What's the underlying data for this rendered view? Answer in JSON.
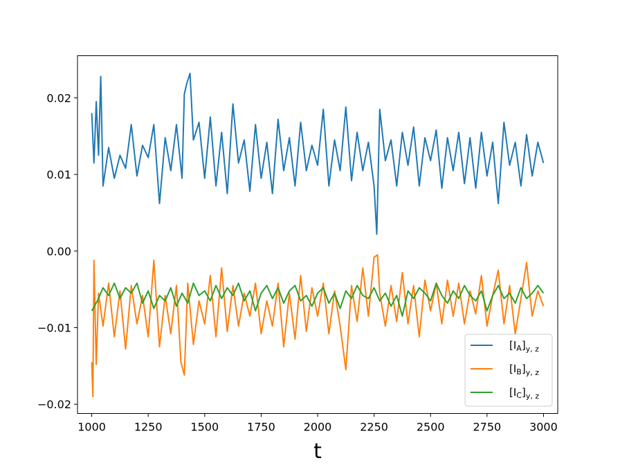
{
  "chart_data": {
    "type": "line",
    "title": "",
    "xlabel": "t",
    "ylabel": "",
    "xlim": [
      937,
      3063
    ],
    "ylim": [
      -0.0212,
      0.0255
    ],
    "xticks": [
      1000,
      1250,
      1500,
      1750,
      2000,
      2250,
      2500,
      2750,
      3000
    ],
    "xtick_labels": [
      "1000",
      "1250",
      "1500",
      "1750",
      "2000",
      "2250",
      "2500",
      "2750",
      "3000"
    ],
    "yticks": [
      -0.02,
      -0.01,
      0.0,
      0.01,
      0.02
    ],
    "ytick_labels": [
      "−0.02",
      "−0.01",
      "0.00",
      "0.01",
      "0.02"
    ],
    "grid": false,
    "legend_position": "bottom-right",
    "series": [
      {
        "name": "A",
        "legend_main": "[I",
        "legend_sub": "A",
        "legend_tail": "]",
        "legend_sub2": "y, z",
        "color": "#1f77b4",
        "x": [
          1000,
          1010,
          1020,
          1030,
          1040,
          1050,
          1075,
          1100,
          1125,
          1150,
          1175,
          1200,
          1225,
          1250,
          1275,
          1300,
          1325,
          1350,
          1375,
          1400,
          1410,
          1420,
          1435,
          1450,
          1475,
          1500,
          1525,
          1550,
          1575,
          1600,
          1625,
          1650,
          1675,
          1700,
          1725,
          1750,
          1775,
          1800,
          1825,
          1850,
          1875,
          1900,
          1925,
          1950,
          1975,
          2000,
          2025,
          2050,
          2075,
          2100,
          2125,
          2150,
          2175,
          2200,
          2225,
          2250,
          2262,
          2275,
          2300,
          2325,
          2350,
          2375,
          2400,
          2425,
          2450,
          2475,
          2500,
          2525,
          2550,
          2575,
          2600,
          2625,
          2650,
          2675,
          2700,
          2725,
          2750,
          2775,
          2800,
          2825,
          2850,
          2875,
          2900,
          2925,
          2950,
          2975,
          3000
        ],
        "y": [
          0.018,
          0.0115,
          0.0195,
          0.0125,
          0.0228,
          0.0085,
          0.0135,
          0.0095,
          0.0125,
          0.0108,
          0.0165,
          0.0098,
          0.0138,
          0.0122,
          0.0165,
          0.0062,
          0.0148,
          0.0105,
          0.0165,
          0.0095,
          0.0205,
          0.0218,
          0.0232,
          0.0145,
          0.0168,
          0.0095,
          0.0175,
          0.0085,
          0.0155,
          0.0075,
          0.0192,
          0.0115,
          0.0145,
          0.0078,
          0.0165,
          0.0095,
          0.0142,
          0.0075,
          0.0172,
          0.0105,
          0.0148,
          0.0085,
          0.0168,
          0.0105,
          0.0138,
          0.0112,
          0.0185,
          0.0085,
          0.0145,
          0.0105,
          0.0188,
          0.0092,
          0.0155,
          0.0105,
          0.0142,
          0.0085,
          0.0022,
          0.0185,
          0.0118,
          0.0145,
          0.0085,
          0.0155,
          0.0112,
          0.0162,
          0.0085,
          0.0148,
          0.0118,
          0.0158,
          0.0082,
          0.0148,
          0.0105,
          0.0155,
          0.0088,
          0.0148,
          0.0082,
          0.0155,
          0.0098,
          0.0142,
          0.0062,
          0.0168,
          0.0112,
          0.0142,
          0.0085,
          0.0152,
          0.0098,
          0.0142,
          0.0115
        ]
      },
      {
        "name": "B",
        "legend_main": "[I",
        "legend_sub": "B",
        "legend_tail": "]",
        "legend_sub2": "y, z",
        "color": "#ff7f0e",
        "x": [
          1000,
          1005,
          1010,
          1015,
          1020,
          1030,
          1050,
          1075,
          1100,
          1125,
          1150,
          1175,
          1200,
          1225,
          1250,
          1275,
          1300,
          1325,
          1350,
          1375,
          1395,
          1410,
          1425,
          1450,
          1475,
          1500,
          1525,
          1550,
          1575,
          1600,
          1625,
          1650,
          1675,
          1700,
          1725,
          1750,
          1775,
          1800,
          1825,
          1850,
          1875,
          1900,
          1925,
          1950,
          1975,
          2000,
          2025,
          2050,
          2075,
          2100,
          2125,
          2150,
          2175,
          2200,
          2225,
          2250,
          2265,
          2275,
          2300,
          2325,
          2350,
          2375,
          2400,
          2425,
          2450,
          2475,
          2500,
          2525,
          2550,
          2575,
          2600,
          2625,
          2650,
          2675,
          2700,
          2725,
          2750,
          2775,
          2800,
          2825,
          2850,
          2875,
          2900,
          2925,
          2950,
          2975,
          3000
        ],
        "y": [
          -0.0145,
          -0.019,
          -0.0012,
          -0.0085,
          -0.0148,
          -0.0055,
          -0.0098,
          -0.0042,
          -0.0112,
          -0.0052,
          -0.0128,
          -0.0045,
          -0.0095,
          -0.0058,
          -0.0112,
          -0.0012,
          -0.0125,
          -0.0058,
          -0.0108,
          -0.0045,
          -0.0145,
          -0.0162,
          -0.0042,
          -0.0122,
          -0.0065,
          -0.0095,
          -0.0032,
          -0.0112,
          -0.0022,
          -0.0105,
          -0.0045,
          -0.0098,
          -0.0055,
          -0.0085,
          -0.0042,
          -0.0108,
          -0.0065,
          -0.0098,
          -0.0042,
          -0.0125,
          -0.0055,
          -0.0115,
          -0.0032,
          -0.0105,
          -0.0048,
          -0.0085,
          -0.0042,
          -0.0108,
          -0.0052,
          -0.0098,
          -0.0155,
          -0.0045,
          -0.0092,
          -0.0022,
          -0.0085,
          -0.0008,
          -0.0005,
          -0.0055,
          -0.0098,
          -0.0045,
          -0.0092,
          -0.0028,
          -0.0095,
          -0.0045,
          -0.0112,
          -0.0038,
          -0.0078,
          -0.0042,
          -0.0095,
          -0.0038,
          -0.0085,
          -0.0042,
          -0.0095,
          -0.0052,
          -0.0082,
          -0.0032,
          -0.0098,
          -0.0058,
          -0.0025,
          -0.0095,
          -0.0045,
          -0.0108,
          -0.0062,
          -0.0015,
          -0.0085,
          -0.0052,
          -0.0072
        ]
      },
      {
        "name": "C",
        "legend_main": "[I",
        "legend_sub": "C",
        "legend_tail": "]",
        "legend_sub2": "y, z",
        "color": "#2ca02c",
        "x": [
          1000,
          1025,
          1050,
          1075,
          1100,
          1125,
          1150,
          1175,
          1200,
          1225,
          1250,
          1275,
          1300,
          1325,
          1350,
          1375,
          1400,
          1425,
          1450,
          1475,
          1500,
          1525,
          1550,
          1575,
          1600,
          1625,
          1650,
          1675,
          1700,
          1725,
          1750,
          1775,
          1800,
          1825,
          1850,
          1875,
          1900,
          1925,
          1950,
          1975,
          2000,
          2025,
          2050,
          2075,
          2100,
          2125,
          2150,
          2175,
          2200,
          2225,
          2250,
          2275,
          2300,
          2325,
          2350,
          2375,
          2400,
          2425,
          2450,
          2475,
          2500,
          2525,
          2550,
          2575,
          2600,
          2625,
          2650,
          2675,
          2700,
          2725,
          2750,
          2775,
          2800,
          2825,
          2850,
          2875,
          2900,
          2925,
          2950,
          2975,
          3000
        ],
        "y": [
          -0.0078,
          -0.0065,
          -0.0048,
          -0.0058,
          -0.0042,
          -0.0062,
          -0.0048,
          -0.0055,
          -0.0042,
          -0.0068,
          -0.0052,
          -0.0075,
          -0.0058,
          -0.0065,
          -0.0048,
          -0.0072,
          -0.0055,
          -0.0068,
          -0.0042,
          -0.0058,
          -0.0052,
          -0.0065,
          -0.0045,
          -0.0062,
          -0.0048,
          -0.0058,
          -0.0042,
          -0.0065,
          -0.0052,
          -0.0078,
          -0.0055,
          -0.0045,
          -0.0062,
          -0.0048,
          -0.0068,
          -0.0052,
          -0.0045,
          -0.0065,
          -0.0058,
          -0.0072,
          -0.0055,
          -0.0048,
          -0.0068,
          -0.0055,
          -0.0075,
          -0.0052,
          -0.0062,
          -0.0045,
          -0.0058,
          -0.0062,
          -0.0048,
          -0.0065,
          -0.0055,
          -0.0072,
          -0.0058,
          -0.0085,
          -0.0052,
          -0.0062,
          -0.0048,
          -0.0055,
          -0.0065,
          -0.0042,
          -0.0058,
          -0.0068,
          -0.0052,
          -0.0062,
          -0.0045,
          -0.0058,
          -0.0065,
          -0.0052,
          -0.0078,
          -0.0058,
          -0.0045,
          -0.0062,
          -0.0055,
          -0.0068,
          -0.0048,
          -0.0062,
          -0.0055,
          -0.0045,
          -0.0055
        ]
      }
    ]
  }
}
